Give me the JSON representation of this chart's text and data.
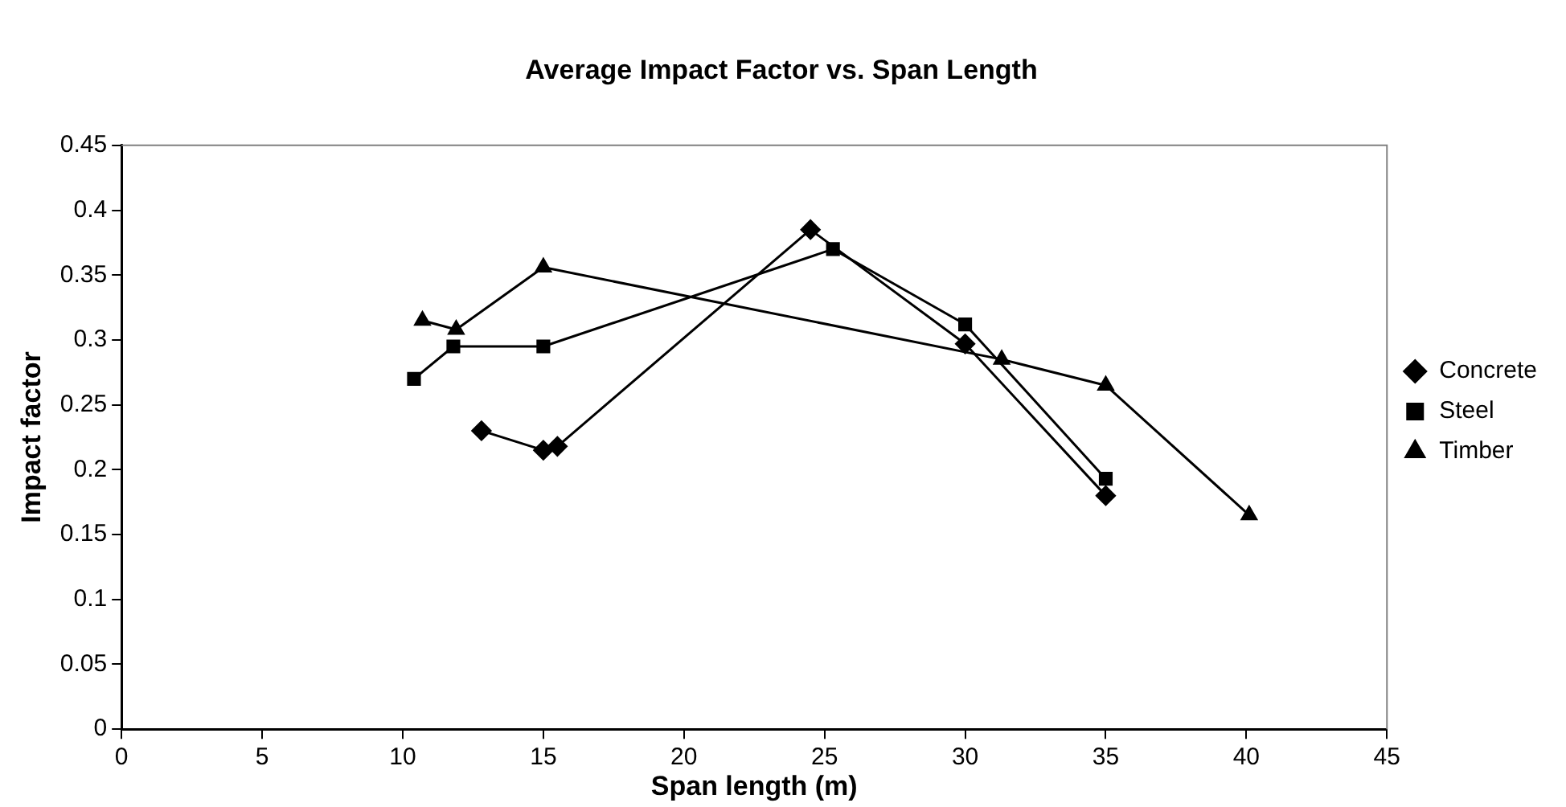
{
  "chart_data": {
    "type": "line",
    "title": "Average Impact Factor vs. Span Length",
    "xlabel": "Span length (m)",
    "ylabel": "Impact factor",
    "xlim": [
      0,
      45
    ],
    "xticks": [
      0,
      5,
      10,
      15,
      20,
      25,
      30,
      35,
      40,
      45
    ],
    "ylim": [
      0,
      0.45
    ],
    "yticks": [
      0,
      0.05,
      0.1,
      0.15,
      0.2,
      0.25,
      0.3,
      0.35,
      0.4,
      0.45
    ],
    "grid": false,
    "legend": "right",
    "line_style": "solid",
    "series": [
      {
        "name": "Concrete",
        "color": "#000000",
        "marker": "diamond",
        "x": [
          12.8,
          15,
          15.5,
          24.5,
          30,
          35
        ],
        "values": [
          0.23,
          0.215,
          0.218,
          0.385,
          0.297,
          0.18
        ]
      },
      {
        "name": "Steel",
        "color": "#000000",
        "marker": "square",
        "x": [
          10.4,
          11.8,
          15,
          25.3,
          30,
          35
        ],
        "values": [
          0.27,
          0.295,
          0.295,
          0.37,
          0.312,
          0.193
        ]
      },
      {
        "name": "Timber",
        "color": "#000000",
        "marker": "triangle",
        "x": [
          10.7,
          11.9,
          15,
          31.3,
          35,
          40.1
        ],
        "values": [
          0.315,
          0.308,
          0.356,
          0.285,
          0.265,
          0.165
        ]
      }
    ]
  }
}
